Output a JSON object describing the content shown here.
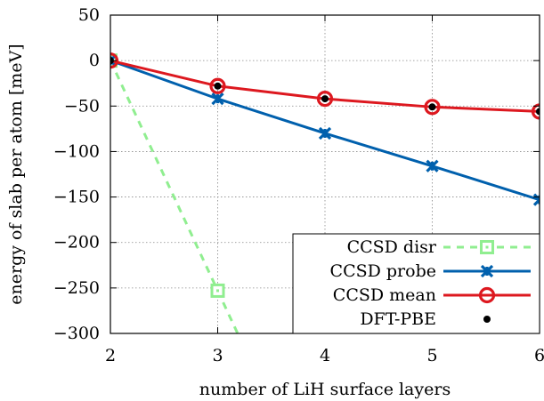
{
  "chart_data": {
    "type": "line",
    "title": "",
    "xlabel": "number of LiH surface layers",
    "ylabel": "energy of slab per atom [meV]",
    "xlim": [
      2,
      6
    ],
    "ylim": [
      -300,
      50
    ],
    "xticks": [
      2,
      3,
      4,
      5,
      6
    ],
    "yticks": [
      50,
      0,
      -50,
      -100,
      -150,
      -200,
      -250,
      -300
    ],
    "grid": true,
    "legend_position": "bottom-right",
    "series": [
      {
        "name": "CCSD disr",
        "color": "#90ee90",
        "style": "dashed",
        "marker": "square-dot",
        "x": [
          2,
          3
        ],
        "y": [
          0,
          -253
        ]
      },
      {
        "name": "CCSD probe",
        "color": "#0060ad",
        "style": "solid",
        "marker": "star-x",
        "x": [
          2,
          3,
          4,
          5,
          6
        ],
        "y": [
          0,
          -42,
          -80,
          -116,
          -153
        ]
      },
      {
        "name": "CCSD mean",
        "color": "#dd181f",
        "style": "solid",
        "marker": "circle-open",
        "x": [
          2,
          3,
          4,
          5,
          6
        ],
        "y": [
          0,
          -28,
          -42,
          -51,
          -56
        ]
      },
      {
        "name": "DFT-PBE",
        "color": "#000000",
        "style": "none",
        "marker": "dot",
        "x": [
          2,
          3,
          4,
          5,
          6
        ],
        "y": [
          0,
          -28,
          -42,
          -51,
          -56
        ]
      }
    ]
  }
}
